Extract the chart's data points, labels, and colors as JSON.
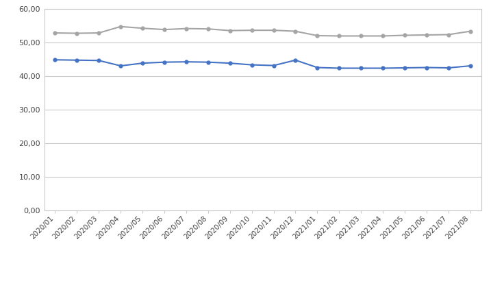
{
  "categories": [
    "2020/01",
    "2020/02",
    "2020/03",
    "2020/04",
    "2020/05",
    "2020/06",
    "2020/07",
    "2020/08",
    "2020/09",
    "2020/10",
    "2020/11",
    "2020/12",
    "2021/01",
    "2021/02",
    "2021/03",
    "2021/04",
    "2021/05",
    "2021/06",
    "2021/07",
    "2021/08"
  ],
  "bedienden": [
    44.8,
    44.7,
    44.6,
    43.0,
    43.8,
    44.1,
    44.2,
    44.1,
    43.8,
    43.3,
    43.1,
    44.7,
    42.5,
    42.3,
    42.3,
    42.3,
    42.4,
    42.5,
    42.4,
    43.0
  ],
  "werkgevers": [
    52.8,
    52.7,
    52.8,
    54.7,
    54.2,
    53.8,
    54.1,
    54.0,
    53.5,
    53.6,
    53.6,
    53.3,
    52.0,
    51.9,
    51.9,
    51.9,
    52.1,
    52.2,
    52.3,
    53.3
  ],
  "bedienden_color": "#4472C4",
  "werkgevers_color": "#A5A5A5",
  "ylim": [
    0,
    60
  ],
  "yticks": [
    0.0,
    10.0,
    20.0,
    30.0,
    40.0,
    50.0,
    60.0
  ],
  "background_color": "#ffffff",
  "plot_bg_color": "#ffffff",
  "grid_color": "#c8c8c8",
  "border_color": "#c8c8c8",
  "marker": "o",
  "markersize": 3.5,
  "linewidth": 1.5
}
